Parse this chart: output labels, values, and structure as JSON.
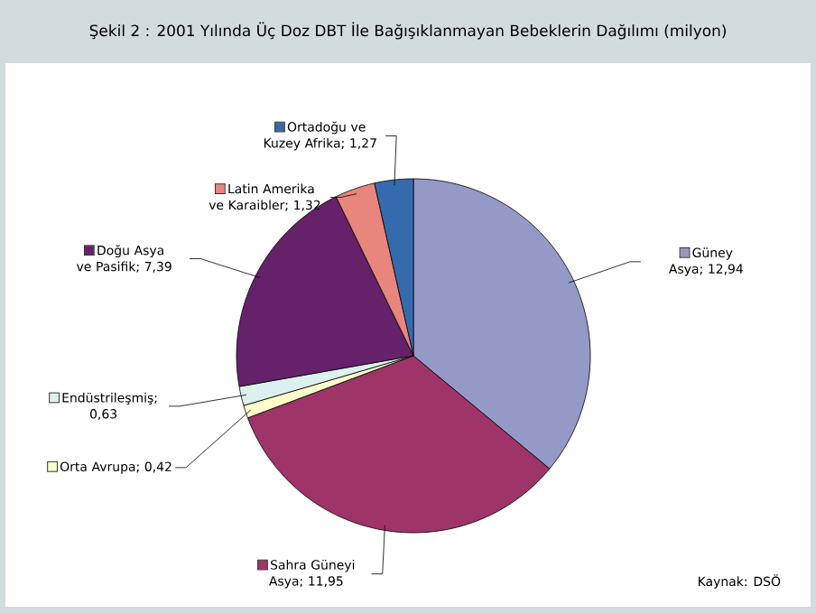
{
  "chart_data": {
    "type": "pie",
    "title": "Şekil 2 : 2001 Yılında Üç Doz DBT İle Bağışıklanmayan Bebeklerin Dağılımı (milyon)",
    "categories": [
      "Güney Asya",
      "Sahra Güneyi Asya",
      "Orta Avrupa",
      "Endüstrileşmiş",
      "Doğu Asya ve Pasifik",
      "Latin Amerika ve Karaibler",
      "Ortadoğu ve Kuzey Afrika"
    ],
    "values": [
      12.94,
      11.95,
      0.42,
      0.63,
      7.39,
      1.32,
      1.27
    ],
    "value_labels": [
      "; 12,94",
      "; 11,95",
      "; 0,42",
      "; 0,63",
      "; 7,39",
      "; 1,32",
      "; 1,27"
    ],
    "legend": "top left",
    "colors": [
      "#9499c8",
      "#9e3468",
      "#ffffcc",
      "#ddf0f0",
      "#65216a",
      "#e8857c",
      "#356bad"
    ],
    "annotations": [
      "Kaynak: DSÖ"
    ]
  }
}
